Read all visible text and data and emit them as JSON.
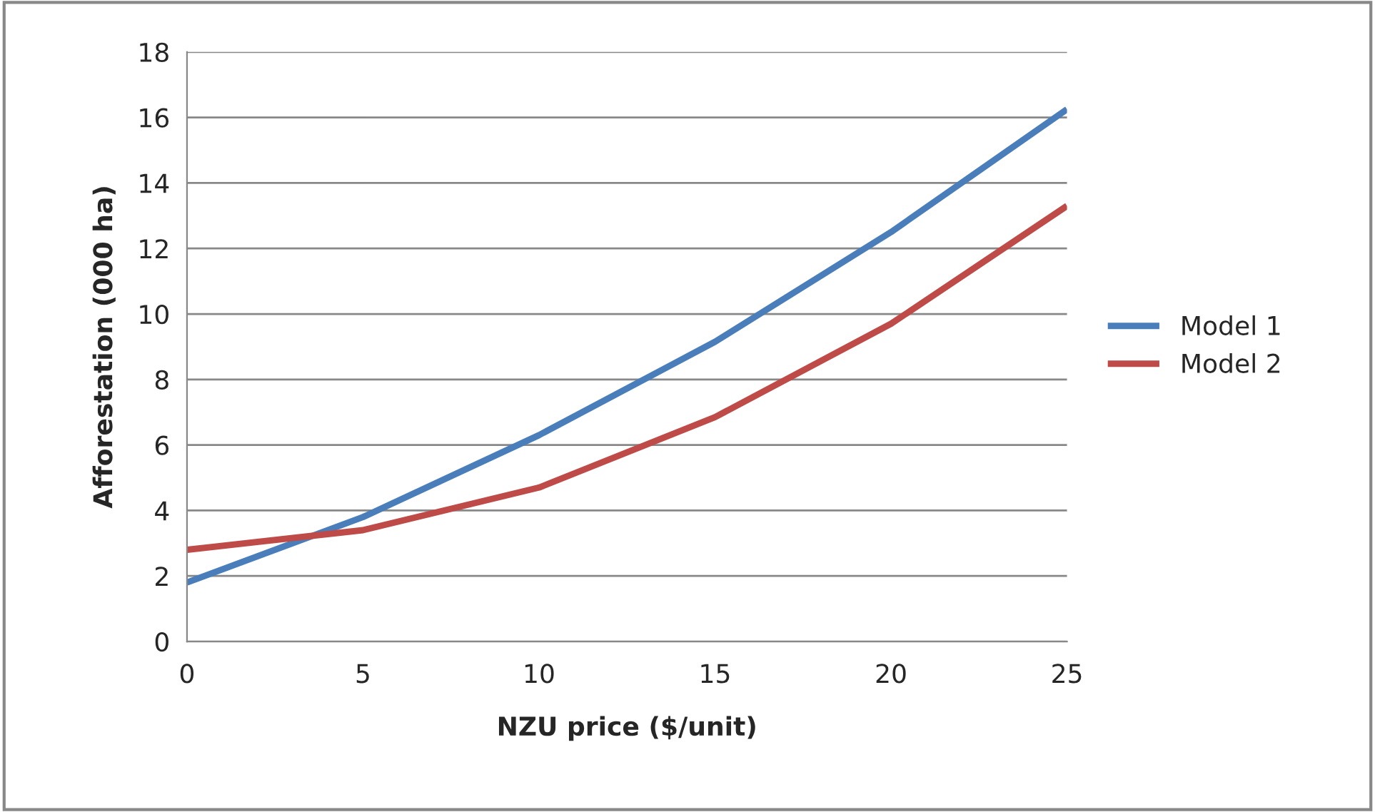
{
  "chart_data": {
    "type": "line",
    "xlabel": "NZU price ($/unit)",
    "ylabel": "Afforestation (000 ha)",
    "x": [
      0,
      5,
      10,
      15,
      20,
      25
    ],
    "series": [
      {
        "name": "Model 1",
        "color": "#4a7ebb",
        "values": [
          1.8,
          3.8,
          6.3,
          9.15,
          12.5,
          16.25
        ]
      },
      {
        "name": "Model 2",
        "color": "#be4b48",
        "values": [
          2.8,
          3.4,
          4.7,
          6.85,
          9.7,
          13.3
        ]
      }
    ],
    "xlim": [
      0,
      25
    ],
    "xticks": [
      0,
      5,
      10,
      15,
      20,
      25
    ],
    "ylim": [
      0,
      18
    ],
    "yticks": [
      0,
      2,
      4,
      6,
      8,
      10,
      12,
      14,
      16,
      18
    ],
    "grid": "y",
    "legend": "right",
    "marker": "none",
    "line_style": "solid"
  }
}
